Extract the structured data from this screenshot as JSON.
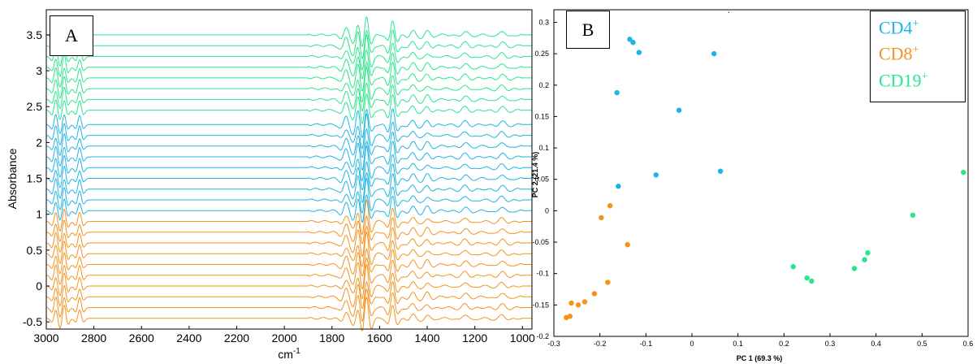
{
  "figure": {
    "panel_a_label": "A",
    "panel_b_label": "B",
    "stray_tick_text": "."
  },
  "colors": {
    "cd4": "#1eb4e6",
    "cd8": "#f5921e",
    "cd19": "#28e68c",
    "axis": "#000000"
  },
  "chart_data": [
    {
      "type": "line",
      "panel": "A",
      "title": "",
      "xlabel": "cm",
      "xlabel_sup": "-1",
      "ylabel": "Absorbance",
      "xlim": [
        3000,
        960
      ],
      "x_reversed": true,
      "ylim": [
        -0.6,
        3.85
      ],
      "xticks": [
        3000,
        2800,
        2600,
        2400,
        2200,
        2000,
        1800,
        1600,
        1400,
        1200,
        1000
      ],
      "yticks": [
        -0.5,
        0,
        0.5,
        1,
        1.5,
        2,
        2.5,
        3,
        3.5
      ],
      "ytick_labels": [
        "-0.5",
        "0",
        "0.5",
        "1",
        "1.5",
        "2",
        "2.5",
        "3",
        "3.5"
      ],
      "series": [
        {
          "group": "CD8+",
          "color": "#f5921e",
          "offsets": [
            -0.45,
            -0.3,
            -0.15,
            0.0,
            0.15,
            0.3,
            0.45,
            0.6,
            0.75,
            0.9
          ]
        },
        {
          "group": "CD4+",
          "color": "#1eb4e6",
          "offsets": [
            1.05,
            1.2,
            1.35,
            1.5,
            1.65,
            1.8,
            1.95,
            2.1,
            2.25
          ]
        },
        {
          "group": "CD19+",
          "color": "#28e68c",
          "offsets": [
            2.45,
            2.6,
            2.75,
            2.9,
            3.05,
            3.2,
            3.35,
            3.5
          ]
        }
      ],
      "bands": [
        {
          "center": 2960,
          "width": 10,
          "amp": 0.13
        },
        {
          "center": 2925,
          "width": 10,
          "amp": 0.16
        },
        {
          "center": 2860,
          "width": 10,
          "amp": 0.12
        },
        {
          "center": 1740,
          "width": 14,
          "amp": 0.1
        },
        {
          "center": 1690,
          "width": 12,
          "amp": 0.18
        },
        {
          "center": 1655,
          "width": 12,
          "amp": 0.27
        },
        {
          "center": 1545,
          "width": 12,
          "amp": 0.2
        },
        {
          "center": 1460,
          "width": 15,
          "amp": 0.06
        },
        {
          "center": 1400,
          "width": 15,
          "amp": 0.05
        },
        {
          "center": 1240,
          "width": 18,
          "amp": 0.05
        },
        {
          "center": 1085,
          "width": 18,
          "amp": 0.05
        }
      ]
    },
    {
      "type": "scatter",
      "panel": "B",
      "title": "",
      "xlabel": "PC 1 (69.3 %)",
      "ylabel": "PC 2 (21.4 %)",
      "xlim": [
        -0.3,
        0.6
      ],
      "ylim": [
        -0.2,
        0.32
      ],
      "xticks": [
        -0.3,
        -0.2,
        -0.1,
        0,
        0.1,
        0.2,
        0.3,
        0.4,
        0.5,
        0.6
      ],
      "xtick_labels": [
        "-0.3",
        "-0.2",
        "-0.1",
        "0",
        "0.1",
        "0.2",
        "0.3",
        "0.4",
        "0.5",
        "0.6"
      ],
      "yticks": [
        -0.2,
        -0.15,
        -0.1,
        -0.05,
        0,
        0.05,
        0.1,
        0.15,
        0.2,
        0.25,
        0.3
      ],
      "ytick_labels": [
        "-0.2",
        "-0.15",
        "-0.1",
        "-0.05",
        "0",
        "0.05",
        "0.1",
        "0.15",
        "0.2",
        "0.25",
        "0.3"
      ],
      "legend_position": "top-right",
      "series": [
        {
          "name": "CD4",
          "sup": "+",
          "color": "#1eb4e6",
          "points": [
            [
              -0.135,
              0.273
            ],
            [
              -0.128,
              0.268
            ],
            [
              -0.115,
              0.252
            ],
            [
              0.048,
              0.25
            ],
            [
              -0.163,
              0.188
            ],
            [
              -0.028,
              0.16
            ],
            [
              0.062,
              0.063
            ],
            [
              -0.078,
              0.057
            ],
            [
              -0.16,
              0.039
            ]
          ]
        },
        {
          "name": "CD8",
          "sup": "+",
          "color": "#f5921e",
          "points": [
            [
              -0.178,
              0.008
            ],
            [
              -0.197,
              -0.011
            ],
            [
              -0.14,
              -0.054
            ],
            [
              -0.183,
              -0.114
            ],
            [
              -0.212,
              -0.132
            ],
            [
              -0.233,
              -0.145
            ],
            [
              -0.247,
              -0.15
            ],
            [
              -0.262,
              -0.147
            ],
            [
              -0.265,
              -0.168
            ],
            [
              -0.273,
              -0.17
            ]
          ]
        },
        {
          "name": "CD19",
          "sup": "+",
          "color": "#28e68c",
          "points": [
            [
              0.59,
              0.061
            ],
            [
              0.48,
              -0.007
            ],
            [
              0.382,
              -0.067
            ],
            [
              0.375,
              -0.078
            ],
            [
              0.22,
              -0.089
            ],
            [
              0.353,
              -0.092
            ],
            [
              0.25,
              -0.107
            ],
            [
              0.26,
              -0.112
            ]
          ]
        }
      ]
    }
  ]
}
